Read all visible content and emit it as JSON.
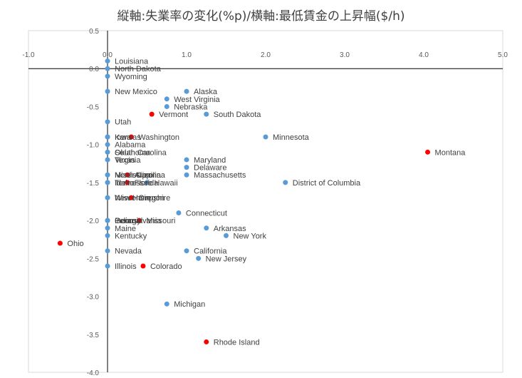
{
  "chart_data": {
    "type": "scatter",
    "title": "縦軸:失業率の変化(%p)/横軸:最低賃金の上昇幅($/h)",
    "xlabel": "",
    "ylabel": "",
    "xlim": [
      -1.0,
      5.0
    ],
    "ylim": [
      -4.0,
      0.5
    ],
    "x_ticks": [
      "-1.0",
      "0.0",
      "1.0",
      "2.0",
      "3.0",
      "4.0",
      "5.0"
    ],
    "y_ticks": [
      "0.5",
      "0.0",
      "-0.5",
      "-1.0",
      "-1.5",
      "-2.0",
      "-2.5",
      "-3.0",
      "-3.5",
      "-4.0"
    ],
    "grid": false,
    "legend": "none",
    "colors": {
      "blue": "#5b9bd5",
      "red": "#ff0000"
    },
    "points": [
      {
        "label": "Louisiana",
        "x": 0.0,
        "y": 0.1,
        "color": "blue"
      },
      {
        "label": "North Dakota",
        "x": 0.0,
        "y": 0.0,
        "color": "blue"
      },
      {
        "label": "Wyoming",
        "x": 0.0,
        "y": -0.1,
        "color": "blue"
      },
      {
        "label": "New Mexico",
        "x": 0.0,
        "y": -0.3,
        "color": "blue"
      },
      {
        "label": "Alaska",
        "x": 1.0,
        "y": -0.3,
        "color": "blue"
      },
      {
        "label": "West Virginia",
        "x": 0.75,
        "y": -0.4,
        "color": "blue"
      },
      {
        "label": "Nebraska",
        "x": 0.75,
        "y": -0.5,
        "color": "blue"
      },
      {
        "label": "Vermont",
        "x": 0.56,
        "y": -0.6,
        "color": "red"
      },
      {
        "label": "South Dakota",
        "x": 1.25,
        "y": -0.6,
        "color": "blue"
      },
      {
        "label": "Utah",
        "x": 0.0,
        "y": -0.7,
        "color": "blue"
      },
      {
        "label": "Minnesota",
        "x": 2.0,
        "y": -0.9,
        "color": "blue"
      },
      {
        "label": "Iowa",
        "x": 0.0,
        "y": -0.9,
        "color": "blue"
      },
      {
        "label": "Kansas",
        "x": 0.0,
        "y": -0.9,
        "color": "blue"
      },
      {
        "label": "Washington",
        "x": 0.3,
        "y": -0.9,
        "color": "red"
      },
      {
        "label": "Alabama",
        "x": 0.0,
        "y": -1.0,
        "color": "blue"
      },
      {
        "label": "Montana",
        "x": 4.05,
        "y": -1.1,
        "color": "red"
      },
      {
        "label": "Oklahoma",
        "x": 0.0,
        "y": -1.1,
        "color": "blue"
      },
      {
        "label": "South Carolina",
        "x": 0.0,
        "y": -1.1,
        "color": "blue"
      },
      {
        "label": "Texas",
        "x": 0.0,
        "y": -1.2,
        "color": "blue"
      },
      {
        "label": "Virginia",
        "x": 0.0,
        "y": -1.2,
        "color": "blue"
      },
      {
        "label": "Maryland",
        "x": 1.0,
        "y": -1.2,
        "color": "blue"
      },
      {
        "label": "Delaware",
        "x": 1.0,
        "y": -1.3,
        "color": "blue"
      },
      {
        "label": "Massachusetts",
        "x": 1.0,
        "y": -1.4,
        "color": "blue"
      },
      {
        "label": "Mississippi",
        "x": 0.0,
        "y": -1.4,
        "color": "blue"
      },
      {
        "label": "North Carolina",
        "x": 0.0,
        "y": -1.4,
        "color": "blue"
      },
      {
        "label": "Arizona",
        "x": 0.25,
        "y": -1.4,
        "color": "red"
      },
      {
        "label": "District of Columbia",
        "x": 2.25,
        "y": -1.5,
        "color": "blue"
      },
      {
        "label": "Tennessee",
        "x": 0.0,
        "y": -1.5,
        "color": "blue"
      },
      {
        "label": "Idaho",
        "x": 0.0,
        "y": -1.5,
        "color": "blue"
      },
      {
        "label": "Florida",
        "x": 0.25,
        "y": -1.5,
        "color": "red"
      },
      {
        "label": "Hawaii",
        "x": 0.5,
        "y": -1.5,
        "color": "blue"
      },
      {
        "label": "New Hampshire",
        "x": 0.0,
        "y": -1.7,
        "color": "blue"
      },
      {
        "label": "Wisconsin",
        "x": 0.0,
        "y": -1.7,
        "color": "blue"
      },
      {
        "label": "Oregon",
        "x": 0.3,
        "y": -1.7,
        "color": "red"
      },
      {
        "label": "Connecticut",
        "x": 0.9,
        "y": -1.9,
        "color": "blue"
      },
      {
        "label": "Georgia",
        "x": 0.0,
        "y": -2.0,
        "color": "blue"
      },
      {
        "label": "Indiana",
        "x": 0.0,
        "y": -2.0,
        "color": "blue"
      },
      {
        "label": "Pennsylvania",
        "x": 0.0,
        "y": -2.0,
        "color": "blue"
      },
      {
        "label": "Missouri",
        "x": 0.4,
        "y": -2.0,
        "color": "red"
      },
      {
        "label": "Maine",
        "x": 0.0,
        "y": -2.1,
        "color": "blue"
      },
      {
        "label": "Arkansas",
        "x": 1.25,
        "y": -2.1,
        "color": "blue"
      },
      {
        "label": "Kentucky",
        "x": 0.0,
        "y": -2.2,
        "color": "blue"
      },
      {
        "label": "New York",
        "x": 1.5,
        "y": -2.2,
        "color": "blue"
      },
      {
        "label": "Ohio",
        "x": -0.6,
        "y": -2.3,
        "color": "red"
      },
      {
        "label": "Nevada",
        "x": 0.0,
        "y": -2.4,
        "color": "blue"
      },
      {
        "label": "California",
        "x": 1.0,
        "y": -2.4,
        "color": "blue"
      },
      {
        "label": "New Jersey",
        "x": 1.15,
        "y": -2.5,
        "color": "blue"
      },
      {
        "label": "Illinois",
        "x": 0.0,
        "y": -2.6,
        "color": "blue"
      },
      {
        "label": "Colorado",
        "x": 0.45,
        "y": -2.6,
        "color": "red"
      },
      {
        "label": "Michigan",
        "x": 0.75,
        "y": -3.1,
        "color": "blue"
      },
      {
        "label": "Rhode Island",
        "x": 1.25,
        "y": -3.6,
        "color": "red"
      }
    ]
  }
}
